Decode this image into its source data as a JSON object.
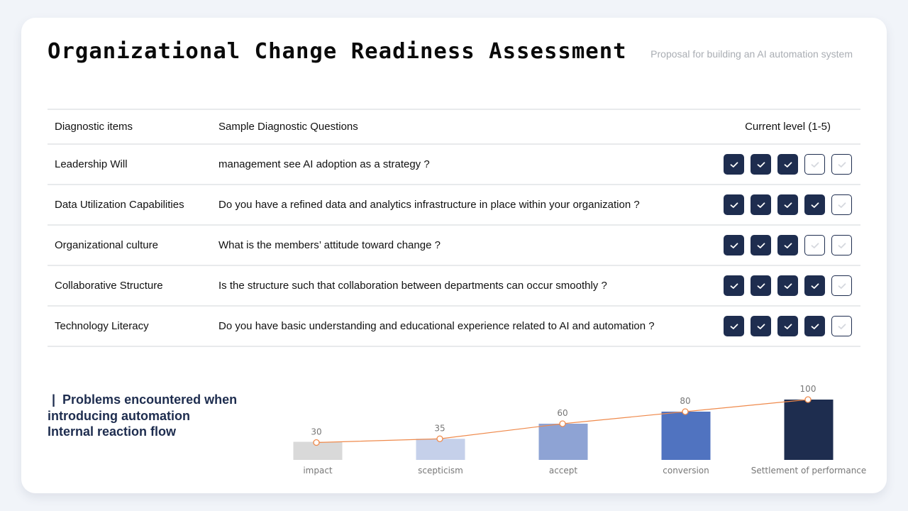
{
  "header": {
    "title": "Organizational Change Readiness Assessment",
    "subtitle": "Proposal for building an AI automation system"
  },
  "table": {
    "columns": [
      "Diagnostic items",
      "Sample Diagnostic Questions",
      "Current level (1-5)"
    ],
    "rows": [
      {
        "item": "Leadership Will",
        "question": "management see AI adoption as a strategy ?",
        "level": 3
      },
      {
        "item": "Data Utilization Capabilities",
        "question": "Do you have a refined data and analytics infrastructure in place within your organization ?",
        "level": 4
      },
      {
        "item": "Organizational culture",
        "question": "What is the members’ attitude toward change ?",
        "level": 3
      },
      {
        "item": "Collaborative Structure",
        "question": "Is the structure such that collaboration between departments can occur smoothly ?",
        "level": 4
      },
      {
        "item": "Technology Literacy",
        "question": "Do you have basic understanding and educational experience related to AI and automation ?",
        "level": 4
      }
    ],
    "max_level": 5,
    "icon": "check-icon",
    "colors": {
      "filled": "#1e2d4f",
      "empty_border": "#1e2d4f",
      "empty_check": "#d5d8de"
    }
  },
  "section": {
    "marker": "|",
    "heading": "Problems encountered when introducing automation Internal reaction flow"
  },
  "chart_data": {
    "type": "bar",
    "title": "Problems encountered when introducing automation Internal reaction flow",
    "categories": [
      "impact",
      "scepticism",
      "accept",
      "conversion",
      "Settlement of performance"
    ],
    "values": [
      30,
      35,
      60,
      80,
      100
    ],
    "data_labels": [
      "30",
      "35",
      "60",
      "80",
      "100"
    ],
    "bar_colors": [
      "#d9d9d9",
      "#c5d0ea",
      "#8ea3d4",
      "#5073c0",
      "#1e2d4f"
    ],
    "overlay_line": {
      "type": "line",
      "values": [
        30,
        35,
        60,
        80,
        100
      ],
      "color": "#ef8a4c",
      "marker": "hollow-circle"
    },
    "xlabel": "",
    "ylabel": "",
    "ylim": [
      0,
      100
    ],
    "grid": false,
    "legend": "none"
  }
}
